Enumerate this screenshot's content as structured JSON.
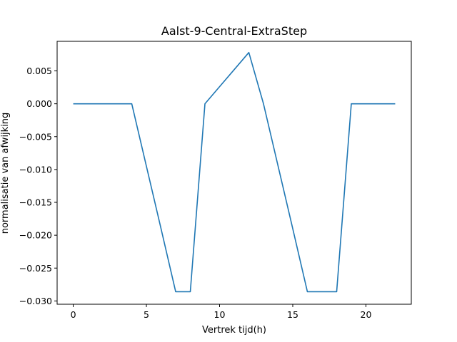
{
  "chart_data": {
    "type": "line",
    "title": "Aalst-9-Central-ExtraStep",
    "xlabel": "Vertrek tijd(h)",
    "ylabel": "normalisatie van afwijking",
    "xlim": [
      -1.1,
      23.1
    ],
    "ylim": [
      -0.0305,
      0.0095
    ],
    "x_ticks": [
      0,
      5,
      10,
      15,
      20
    ],
    "x_tick_labels": [
      "0",
      "5",
      "10",
      "15",
      "20"
    ],
    "y_ticks": [
      0.005,
      0.0,
      -0.005,
      -0.01,
      -0.015,
      -0.02,
      -0.025,
      -0.03
    ],
    "y_tick_labels": [
      "0.005",
      "0.000",
      "−0.005",
      "−0.010",
      "−0.015",
      "−0.020",
      "−0.025",
      "−0.030"
    ],
    "grid": false,
    "colors": {
      "line": "#1f77b4",
      "axes": "#000000",
      "background": "#ffffff"
    },
    "series": [
      {
        "x": [
          0,
          1,
          2,
          3,
          4,
          5,
          6,
          7,
          8,
          9,
          10,
          11,
          12,
          13,
          14,
          15,
          16,
          17,
          18,
          19,
          20,
          21,
          22
        ],
        "values": [
          0,
          0,
          0,
          0,
          0,
          -0.0095,
          -0.019,
          -0.0286,
          -0.0286,
          0,
          0.0026,
          0.0052,
          0.0078,
          0,
          -0.0095,
          -0.019,
          -0.0286,
          -0.0286,
          -0.0286,
          0,
          0,
          0,
          0
        ]
      }
    ]
  }
}
